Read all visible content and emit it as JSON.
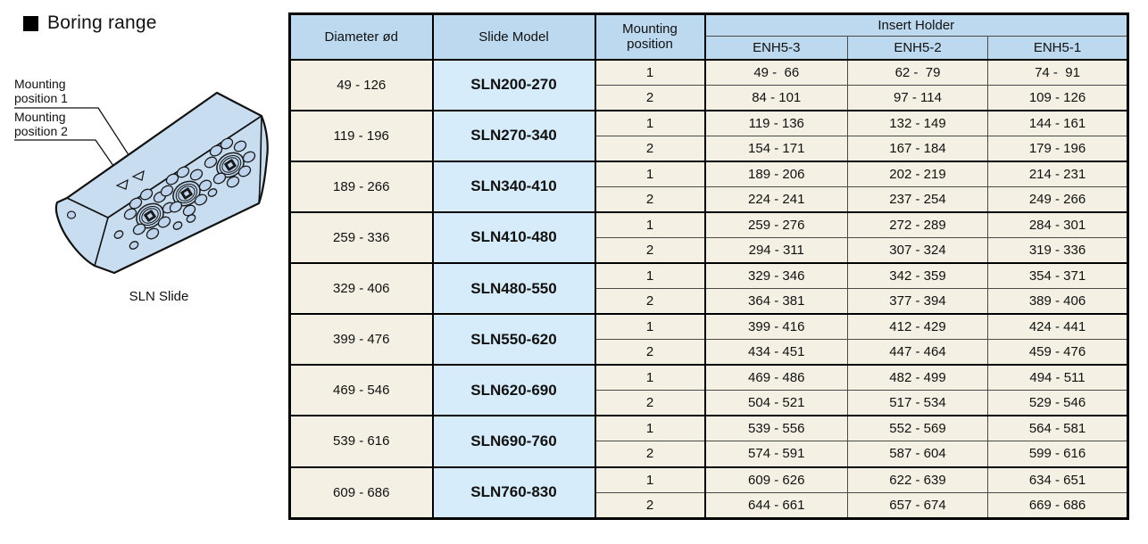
{
  "section": {
    "title": "Boring range"
  },
  "illustration": {
    "caption": "SLN Slide",
    "label_position1": "Mounting position 1",
    "label_position2": "Mounting position 2"
  },
  "colors": {
    "header_blue": "#bcd9f0",
    "model_blue": "#d7ecfa",
    "cell_cream": "#f4f0e4",
    "block_blue": "#c9ddf1",
    "hole_blue": "#bed4ec"
  },
  "table": {
    "headers": {
      "diameter": "Diameter ød",
      "slide_model": "Slide Model",
      "mounting_position": "Mounting position",
      "insert_holder": "Insert Holder",
      "enh_columns": [
        "ENH5-3",
        "ENH5-2",
        "ENH5-1"
      ]
    },
    "rows": [
      {
        "diameter": "49 - 126",
        "model": "SLN200-270",
        "positions": [
          {
            "pos": "1",
            "values": [
              "49 -  66",
              "62 -  79",
              "74 -  91"
            ]
          },
          {
            "pos": "2",
            "values": [
              "84 - 101",
              "97 - 114",
              "109 - 126"
            ]
          }
        ]
      },
      {
        "diameter": "119 - 196",
        "model": "SLN270-340",
        "positions": [
          {
            "pos": "1",
            "values": [
              "119 - 136",
              "132 - 149",
              "144 - 161"
            ]
          },
          {
            "pos": "2",
            "values": [
              "154 - 171",
              "167 - 184",
              "179 - 196"
            ]
          }
        ]
      },
      {
        "diameter": "189 - 266",
        "model": "SLN340-410",
        "positions": [
          {
            "pos": "1",
            "values": [
              "189 - 206",
              "202 - 219",
              "214 - 231"
            ]
          },
          {
            "pos": "2",
            "values": [
              "224 - 241",
              "237 - 254",
              "249 - 266"
            ]
          }
        ]
      },
      {
        "diameter": "259 - 336",
        "model": "SLN410-480",
        "positions": [
          {
            "pos": "1",
            "values": [
              "259 - 276",
              "272 - 289",
              "284 - 301"
            ]
          },
          {
            "pos": "2",
            "values": [
              "294 - 311",
              "307 - 324",
              "319 - 336"
            ]
          }
        ]
      },
      {
        "diameter": "329 - 406",
        "model": "SLN480-550",
        "positions": [
          {
            "pos": "1",
            "values": [
              "329 - 346",
              "342 - 359",
              "354 - 371"
            ]
          },
          {
            "pos": "2",
            "values": [
              "364 - 381",
              "377 - 394",
              "389 - 406"
            ]
          }
        ]
      },
      {
        "diameter": "399 - 476",
        "model": "SLN550-620",
        "positions": [
          {
            "pos": "1",
            "values": [
              "399 - 416",
              "412 - 429",
              "424 - 441"
            ]
          },
          {
            "pos": "2",
            "values": [
              "434 - 451",
              "447 - 464",
              "459 - 476"
            ]
          }
        ]
      },
      {
        "diameter": "469 - 546",
        "model": "SLN620-690",
        "positions": [
          {
            "pos": "1",
            "values": [
              "469 - 486",
              "482 - 499",
              "494 - 511"
            ]
          },
          {
            "pos": "2",
            "values": [
              "504 - 521",
              "517 - 534",
              "529 - 546"
            ]
          }
        ]
      },
      {
        "diameter": "539 - 616",
        "model": "SLN690-760",
        "positions": [
          {
            "pos": "1",
            "values": [
              "539 - 556",
              "552 - 569",
              "564 - 581"
            ]
          },
          {
            "pos": "2",
            "values": [
              "574 - 591",
              "587 - 604",
              "599 - 616"
            ]
          }
        ]
      },
      {
        "diameter": "609 - 686",
        "model": "SLN760-830",
        "positions": [
          {
            "pos": "1",
            "values": [
              "609 - 626",
              "622 - 639",
              "634 - 651"
            ]
          },
          {
            "pos": "2",
            "values": [
              "644 - 661",
              "657 - 674",
              "669 - 686"
            ]
          }
        ]
      }
    ]
  }
}
